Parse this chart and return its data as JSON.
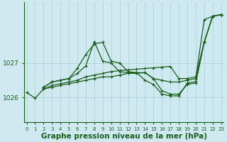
{
  "xlabel": "Graphe pression niveau de la mer (hPa)",
  "ylabel": "",
  "background_color": "#ceeaf0",
  "grid_color": "#a8cdd8",
  "line_color": "#1a5c1a",
  "xlim": [
    -0.3,
    23.3
  ],
  "ylim": [
    1025.3,
    1028.75
  ],
  "yticks": [
    1026,
    1027
  ],
  "xticks": [
    0,
    1,
    2,
    3,
    4,
    5,
    6,
    7,
    8,
    9,
    10,
    11,
    12,
    13,
    14,
    15,
    16,
    17,
    18,
    19,
    20,
    21,
    22,
    23
  ],
  "lines": [
    {
      "x": [
        0,
        1,
        2,
        3,
        4,
        5,
        6,
        7,
        8,
        9,
        10,
        11,
        12,
        13,
        14,
        15,
        16,
        17,
        18,
        19,
        20,
        21,
        22,
        23
      ],
      "y": [
        1026.15,
        1025.98,
        1026.25,
        1026.3,
        1026.35,
        1026.4,
        1026.45,
        1026.5,
        1026.55,
        1026.6,
        1026.6,
        1026.65,
        1026.7,
        1026.7,
        1026.72,
        1026.55,
        1026.5,
        1026.45,
        1026.45,
        1026.5,
        1026.55,
        1028.25,
        1028.35,
        1028.4
      ]
    },
    {
      "x": [
        2,
        3,
        4,
        5,
        6,
        7,
        8,
        9,
        10,
        11,
        12,
        13,
        14,
        15,
        16,
        17,
        18,
        19,
        20,
        21,
        22,
        23
      ],
      "y": [
        1026.25,
        1026.35,
        1026.4,
        1026.45,
        1026.5,
        1026.6,
        1026.65,
        1026.7,
        1026.75,
        1026.78,
        1026.8,
        1026.82,
        1026.84,
        1026.86,
        1026.88,
        1026.9,
        1026.55,
        1026.55,
        1026.6,
        1027.6,
        1028.35,
        1028.4
      ]
    },
    {
      "x": [
        2,
        3,
        4,
        5,
        6,
        7,
        8,
        9,
        10,
        11,
        12,
        13,
        14,
        15,
        16,
        17,
        18,
        19,
        20,
        21,
        22,
        23
      ],
      "y": [
        1026.3,
        1026.45,
        1026.5,
        1026.55,
        1026.85,
        1027.25,
        1027.55,
        1027.6,
        1027.05,
        1027.0,
        1026.75,
        1026.72,
        1026.72,
        1026.55,
        1026.2,
        1026.1,
        1026.1,
        1026.38,
        1026.42,
        1027.6,
        1028.35,
        1028.4
      ]
    },
    {
      "x": [
        2,
        3,
        4,
        5,
        6,
        7,
        8,
        9,
        10,
        11,
        12,
        13,
        14,
        15,
        16,
        17,
        18,
        19,
        20,
        21,
        22,
        23
      ],
      "y": [
        1026.3,
        1026.45,
        1026.5,
        1026.55,
        1026.7,
        1026.92,
        1027.62,
        1027.05,
        1027.0,
        1026.75,
        1026.72,
        1026.72,
        1026.5,
        1026.38,
        1026.1,
        1026.05,
        1026.05,
        1026.42,
        1026.46,
        1027.6,
        1028.35,
        1028.4
      ]
    }
  ],
  "marker": "+",
  "markersize": 3.5,
  "linewidth": 0.9,
  "fontsize_xlabel": 7.5,
  "fontsize_yticks": 6.5,
  "fontsize_xticks": 5.0
}
